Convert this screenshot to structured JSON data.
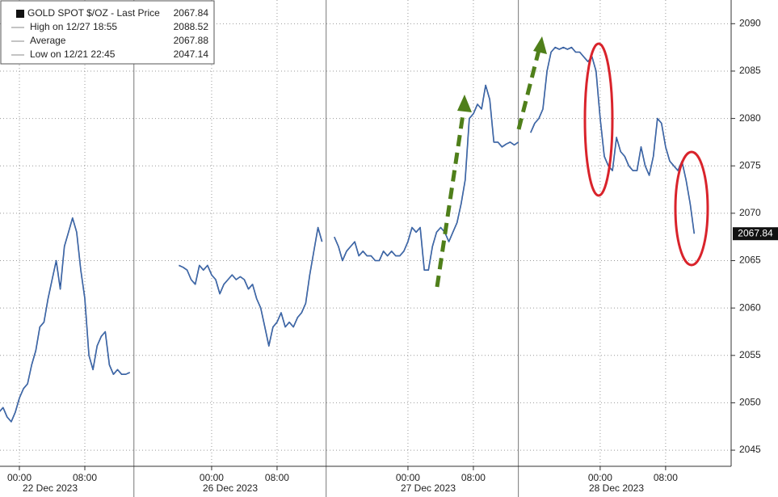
{
  "chart_data": {
    "type": "line",
    "legend_stats": [
      {
        "label": "GOLD SPOT $/OZ - Last Price",
        "value": 2067.84
      },
      {
        "label": "High on 12/27 18:55",
        "value": 2088.52
      },
      {
        "label": "Average",
        "value": 2067.88
      },
      {
        "label": "Low on 12/21 22:45",
        "value": 2047.14
      }
    ],
    "last_price": 2067.84,
    "series": [
      {
        "name": "GOLD SPOT $/OZ",
        "color": "#1f3f86",
        "values": [
          2049,
          2049.5,
          2048.5,
          2048,
          2049,
          2050.5,
          2051.5,
          2052,
          2054,
          2055.5,
          2058,
          2058.5,
          2061,
          2063,
          2065,
          2062,
          2066.5,
          2068,
          2069.5,
          2068,
          2064,
          2061,
          2055,
          2053.5,
          2056,
          2057,
          2057.5,
          2054,
          2053,
          2053.5,
          2053,
          2053,
          2053.2,
          null,
          null,
          null,
          null,
          null,
          null,
          null,
          null,
          null,
          null,
          null,
          2064.5,
          2064.3,
          2064,
          2063,
          2062.5,
          2064.5,
          2064,
          2064.5,
          2063.5,
          2063,
          2061.5,
          2062.5,
          2063,
          2063.5,
          2063,
          2063.3,
          2063,
          2062,
          2062.5,
          2061,
          2060,
          2058,
          2056,
          2058,
          2058.5,
          2059.5,
          2058,
          2058.5,
          2058,
          2059,
          2059.5,
          2060.5,
          2063.5,
          2066,
          2068.5,
          2067,
          null,
          null,
          2067.5,
          2066.5,
          2065,
          2066,
          2066.5,
          2067,
          2065.5,
          2066,
          2065.5,
          2065.5,
          2065,
          2065,
          2066,
          2065.5,
          2066,
          2065.5,
          2065.5,
          2066,
          2067,
          2068.5,
          2068,
          2068.5,
          2064,
          2064,
          2066.5,
          2068,
          2068.5,
          2068,
          2067,
          2068,
          2069,
          2071,
          2073.5,
          2080,
          2080.5,
          2081.5,
          2081,
          2083.5,
          2082,
          2077.5,
          2077.5,
          2077,
          2077.3,
          2077.5,
          2077.2,
          2077.5,
          null,
          null,
          2078.5,
          2079.5,
          2080,
          2081,
          2085,
          2087,
          2087.5,
          2087.3,
          2087.5,
          2087.3,
          2087.5,
          2087,
          2087,
          2086.5,
          2086,
          2086.5,
          2085,
          2080,
          2076,
          2075,
          2074.5,
          2078,
          2076.5,
          2076,
          2075,
          2074.5,
          2074.5,
          2077,
          2075,
          2074,
          2076,
          2080,
          2079.5,
          2077,
          2075.5,
          2075,
          2074.5,
          2075.5,
          2073.5,
          2071,
          2067.84
        ]
      }
    ],
    "xticks": [
      {
        "value": 5,
        "label": "00:00"
      },
      {
        "value": 21,
        "label": "08:00"
      },
      {
        "value": 52,
        "label": "00:00"
      },
      {
        "value": 68,
        "label": "08:00"
      },
      {
        "value": 100,
        "label": "00:00"
      },
      {
        "value": 116,
        "label": "08:00"
      },
      {
        "value": 147,
        "label": "00:00"
      },
      {
        "value": 163,
        "label": "08:00"
      }
    ],
    "date_labels": [
      "22 Dec 2023",
      "26 Dec 2023",
      "27 Dec 2023",
      "28 Dec 2023"
    ],
    "ylim": [
      2043.3,
      2092.5
    ],
    "yticks": [
      2045,
      2050,
      2055,
      2060,
      2065,
      2070,
      2075,
      2080,
      2085,
      2090
    ],
    "grid": true
  }
}
